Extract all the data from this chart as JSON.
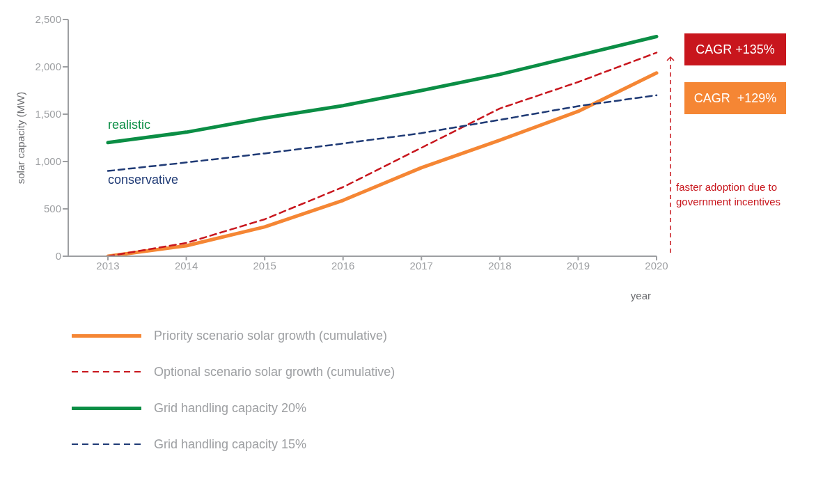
{
  "chart_data": {
    "type": "line",
    "xlabel": "year",
    "ylabel": "solar capacity (MW)",
    "categories": [
      "2013",
      "2014",
      "2015",
      "2016",
      "2017",
      "2018",
      "2019",
      "2020"
    ],
    "series": [
      {
        "name": "Priority scenario solar growth (cumulative)",
        "color": "#f58634",
        "line_style": "solid",
        "values": [
          0,
          110,
          310,
          590,
          935,
          1225,
          1530,
          1935
        ]
      },
      {
        "name": "Optional scenario solar growth (cumulative)",
        "color": "#c8161d",
        "line_style": "dashed",
        "values": [
          0,
          140,
          390,
          730,
          1145,
          1560,
          1840,
          2150
        ]
      },
      {
        "name": "Grid handling capacity 20%",
        "color": "#0b8e45",
        "line_style": "solid",
        "values": [
          1200,
          1310,
          1460,
          1590,
          1750,
          1920,
          2120,
          2320
        ]
      },
      {
        "name": "Grid handling capacity 15%",
        "color": "#1f3a75",
        "line_style": "dashed",
        "values": [
          900,
          990,
          1085,
          1190,
          1300,
          1440,
          1585,
          1700
        ]
      }
    ],
    "ylim": [
      0,
      2500
    ],
    "yticks": [
      0,
      500,
      {
        "value": 1000,
        "label": "1,000"
      },
      {
        "value": 1500,
        "label": "1,500"
      },
      {
        "value": 2000,
        "label": "2,000"
      },
      {
        "value": 2500,
        "label": "2,500"
      }
    ],
    "grid": false,
    "legend": "bottom",
    "marker": "none",
    "annotations": [
      {
        "text": "realistic",
        "x": "2013",
        "y": 1200
      },
      {
        "text": "conservative",
        "x": "2013",
        "y": 900
      },
      "CAGR +135%",
      "CAGR  +129%",
      "faster adoption due to government incentives"
    ]
  }
}
